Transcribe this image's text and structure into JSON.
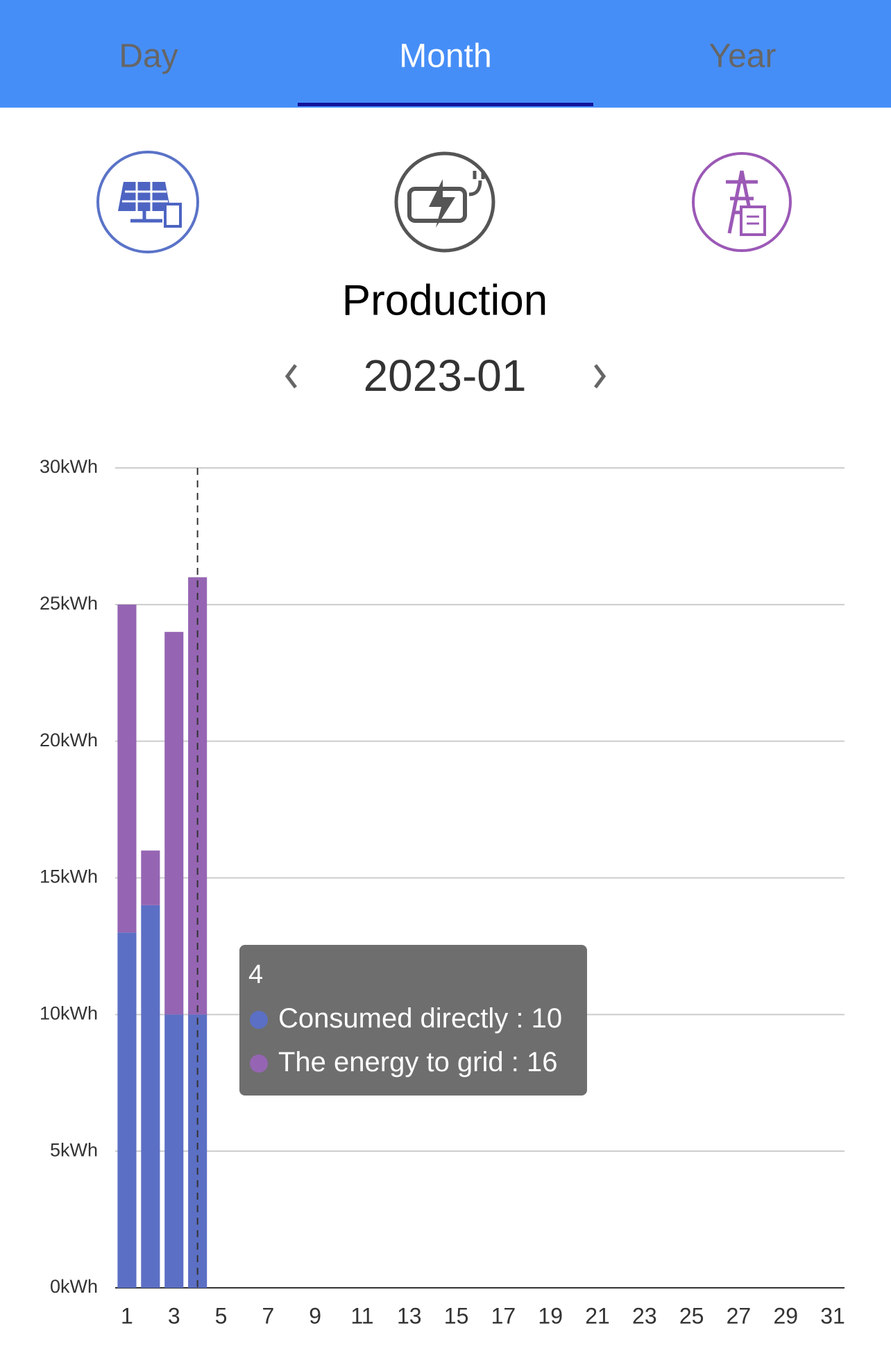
{
  "tabs": [
    "Day",
    "Month",
    "Year"
  ],
  "active_tab": 1,
  "chart_data": {
    "type": "stacked-bar",
    "title": "Production",
    "period": "2023-01",
    "categories": [
      "1",
      null,
      "3",
      null,
      "5",
      null,
      "7",
      null,
      "9",
      null,
      "11",
      null,
      "13",
      null,
      "15",
      null,
      "17",
      null,
      "19",
      null,
      "21",
      null,
      "23",
      null,
      "25",
      null,
      "27",
      null,
      "29",
      null,
      "31"
    ],
    "series": [
      {
        "name": "Consumed directly",
        "color": "#5b6fc4",
        "values": [
          13,
          14,
          10,
          10,
          null,
          null,
          null,
          null,
          null,
          null,
          null,
          null,
          null,
          null,
          null,
          null,
          null,
          null,
          null,
          null,
          null,
          null,
          null,
          null,
          null,
          null,
          null,
          null,
          null,
          null,
          null
        ]
      },
      {
        "name": "The energy to grid",
        "color": "#9565b3",
        "values": [
          12,
          2,
          14,
          16,
          null,
          null,
          null,
          null,
          null,
          null,
          null,
          null,
          null,
          null,
          null,
          null,
          null,
          null,
          null,
          null,
          null,
          null,
          null,
          null,
          null,
          null,
          null,
          null,
          null,
          null,
          null
        ]
      }
    ],
    "ylim": [
      0,
      30
    ],
    "yticks": [
      {
        "value": 0,
        "label": "0kWh"
      },
      {
        "value": 5,
        "label": "5kWh"
      },
      {
        "value": 10,
        "label": "10kWh"
      },
      {
        "value": 15,
        "label": "15kWh"
      },
      {
        "value": 20,
        "label": "20kWh"
      },
      {
        "value": 25,
        "label": "25kWh"
      },
      {
        "value": 30,
        "label": "30kWh"
      }
    ],
    "grid": true,
    "tooltip": {
      "index": 3,
      "title": "4",
      "separator": " : "
    }
  }
}
